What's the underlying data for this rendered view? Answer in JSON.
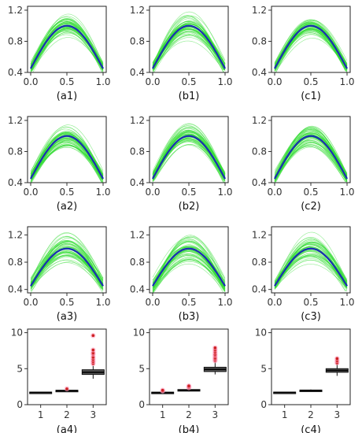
{
  "layout": {
    "rows": 4,
    "cols": 3
  },
  "colors": {
    "individual_curves": "#33dd33",
    "mean_curve": "#1a2db3",
    "box_fill": "#555555",
    "box_line": "#111111",
    "outlier": "#cc2222",
    "outlier_halo": "#ff99bb"
  },
  "chart_data": [
    {
      "id": "a1",
      "caption": "(a1)",
      "type": "line",
      "xlim": [
        0,
        1
      ],
      "ylim": [
        0.4,
        1.25
      ],
      "xticks": [
        "0.0",
        "0.5",
        "1.0"
      ],
      "yticks": [
        "0.4",
        "0.8",
        "1.2"
      ],
      "mean_curve": {
        "x": [
          0,
          0.25,
          0.5,
          0.75,
          1
        ],
        "y": [
          0.45,
          0.79,
          1.0,
          0.79,
          0.45
        ]
      },
      "curve_count": 60,
      "spread": 0.2
    },
    {
      "id": "b1",
      "caption": "(b1)",
      "type": "line",
      "xlim": [
        0,
        1
      ],
      "ylim": [
        0.4,
        1.25
      ],
      "xticks": [
        "0.0",
        "0.5",
        "1.0"
      ],
      "yticks": [
        "0.4",
        "0.8",
        "1.2"
      ],
      "mean_curve": {
        "x": [
          0,
          0.25,
          0.5,
          0.75,
          1
        ],
        "y": [
          0.45,
          0.79,
          1.0,
          0.79,
          0.45
        ]
      },
      "curve_count": 60,
      "spread": 0.2
    },
    {
      "id": "c1",
      "caption": "(c1)",
      "type": "line",
      "xlim": [
        0,
        1
      ],
      "ylim": [
        0.4,
        1.25
      ],
      "xticks": [
        "0.0",
        "0.5",
        "1.0"
      ],
      "yticks": [
        "0.4",
        "0.8",
        "1.2"
      ],
      "mean_curve": {
        "x": [
          0,
          0.25,
          0.5,
          0.75,
          1
        ],
        "y": [
          0.45,
          0.79,
          1.0,
          0.79,
          0.45
        ]
      },
      "curve_count": 60,
      "spread": 0.18
    },
    {
      "id": "a2",
      "caption": "(a2)",
      "type": "line",
      "xlim": [
        0,
        1
      ],
      "ylim": [
        0.4,
        1.25
      ],
      "xticks": [
        "0.0",
        "0.5",
        "1.0"
      ],
      "yticks": [
        "0.4",
        "0.8",
        "1.2"
      ],
      "mean_curve": {
        "x": [
          0,
          0.25,
          0.5,
          0.75,
          1
        ],
        "y": [
          0.45,
          0.79,
          1.0,
          0.79,
          0.45
        ]
      },
      "curve_count": 60,
      "spread": 0.22
    },
    {
      "id": "b2",
      "caption": "(b2)",
      "type": "line",
      "xlim": [
        0,
        1
      ],
      "ylim": [
        0.4,
        1.25
      ],
      "xticks": [
        "0.0",
        "0.5",
        "1.0"
      ],
      "yticks": [
        "0.4",
        "0.8",
        "1.2"
      ],
      "mean_curve": {
        "x": [
          0,
          0.25,
          0.5,
          0.75,
          1
        ],
        "y": [
          0.45,
          0.79,
          1.0,
          0.79,
          0.45
        ]
      },
      "curve_count": 60,
      "spread": 0.22
    },
    {
      "id": "c2",
      "caption": "(c2)",
      "type": "line",
      "xlim": [
        0,
        1
      ],
      "ylim": [
        0.4,
        1.25
      ],
      "xticks": [
        "0.0",
        "0.5",
        "1.0"
      ],
      "yticks": [
        "0.4",
        "0.8",
        "1.2"
      ],
      "mean_curve": {
        "x": [
          0,
          0.25,
          0.5,
          0.75,
          1
        ],
        "y": [
          0.45,
          0.79,
          1.0,
          0.79,
          0.45
        ]
      },
      "curve_count": 60,
      "spread": 0.2
    },
    {
      "id": "a3",
      "caption": "(a3)",
      "type": "line",
      "xlim": [
        0,
        1
      ],
      "ylim": [
        0.35,
        1.32
      ],
      "xticks": [
        "0.0",
        "0.5",
        "1.0"
      ],
      "yticks": [
        "0.4",
        "0.8",
        "1.2"
      ],
      "mean_curve": {
        "x": [
          0,
          0.25,
          0.5,
          0.75,
          1
        ],
        "y": [
          0.45,
          0.79,
          1.0,
          0.79,
          0.45
        ]
      },
      "curve_count": 60,
      "spread": 0.3
    },
    {
      "id": "b3",
      "caption": "(b3)",
      "type": "line",
      "xlim": [
        0,
        1
      ],
      "ylim": [
        0.35,
        1.32
      ],
      "xticks": [
        "0.0",
        "0.5",
        "1.0"
      ],
      "yticks": [
        "0.4",
        "0.8",
        "1.2"
      ],
      "mean_curve": {
        "x": [
          0,
          0.25,
          0.5,
          0.75,
          1
        ],
        "y": [
          0.45,
          0.79,
          1.0,
          0.79,
          0.45
        ]
      },
      "curve_count": 60,
      "spread": 0.3
    },
    {
      "id": "c3",
      "caption": "(c3)",
      "type": "line",
      "xlim": [
        0,
        1
      ],
      "ylim": [
        0.35,
        1.32
      ],
      "xticks": [
        "0.0",
        "0.5",
        "1.0"
      ],
      "yticks": [
        "0.4",
        "0.8",
        "1.2"
      ],
      "mean_curve": {
        "x": [
          0,
          0.25,
          0.5,
          0.75,
          1
        ],
        "y": [
          0.45,
          0.79,
          1.0,
          0.79,
          0.45
        ]
      },
      "curve_count": 60,
      "spread": 0.26
    },
    {
      "id": "a4",
      "caption": "(a4)",
      "type": "box",
      "categories": [
        "1",
        "2",
        "3"
      ],
      "ylim": [
        0,
        10.5
      ],
      "yticks": [
        "0",
        "5",
        "10"
      ],
      "boxes": [
        {
          "min": 1.6,
          "q1": 1.65,
          "median": 1.7,
          "q3": 1.75,
          "max": 1.8,
          "outliers": []
        },
        {
          "min": 1.8,
          "q1": 1.9,
          "median": 1.95,
          "q3": 2.0,
          "max": 2.15,
          "outliers": [
            2.2
          ]
        },
        {
          "min": 3.6,
          "q1": 4.2,
          "median": 4.5,
          "q3": 4.85,
          "max": 5.4,
          "outliers": [
            5.7,
            6.0,
            6.3,
            6.6,
            7.0,
            7.2,
            7.6,
            9.6
          ]
        }
      ]
    },
    {
      "id": "b4",
      "caption": "(b4)",
      "type": "box",
      "categories": [
        "1",
        "2",
        "3"
      ],
      "ylim": [
        0,
        10.5
      ],
      "yticks": [
        "0",
        "5",
        "10"
      ],
      "boxes": [
        {
          "min": 1.55,
          "q1": 1.62,
          "median": 1.68,
          "q3": 1.74,
          "max": 1.82,
          "outliers": [
            1.9,
            2.0
          ]
        },
        {
          "min": 1.85,
          "q1": 1.95,
          "median": 2.0,
          "q3": 2.1,
          "max": 2.25,
          "outliers": [
            2.35,
            2.5,
            2.6
          ]
        },
        {
          "min": 4.2,
          "q1": 4.6,
          "median": 4.9,
          "q3": 5.2,
          "max": 5.9,
          "outliers": [
            6.1,
            6.3,
            6.5,
            6.8,
            7.0,
            7.3,
            7.6,
            7.9
          ]
        }
      ]
    },
    {
      "id": "c4",
      "caption": "(c4)",
      "type": "box",
      "categories": [
        "1",
        "2",
        "3"
      ],
      "ylim": [
        0,
        10.5
      ],
      "yticks": [
        "0",
        "5",
        "10"
      ],
      "boxes": [
        {
          "min": 1.6,
          "q1": 1.65,
          "median": 1.7,
          "q3": 1.75,
          "max": 1.8,
          "outliers": []
        },
        {
          "min": 1.85,
          "q1": 1.93,
          "median": 1.98,
          "q3": 2.03,
          "max": 2.1,
          "outliers": []
        },
        {
          "min": 4.0,
          "q1": 4.5,
          "median": 4.75,
          "q3": 5.0,
          "max": 5.6,
          "outliers": [
            5.8,
            6.1,
            6.4
          ]
        }
      ]
    }
  ]
}
